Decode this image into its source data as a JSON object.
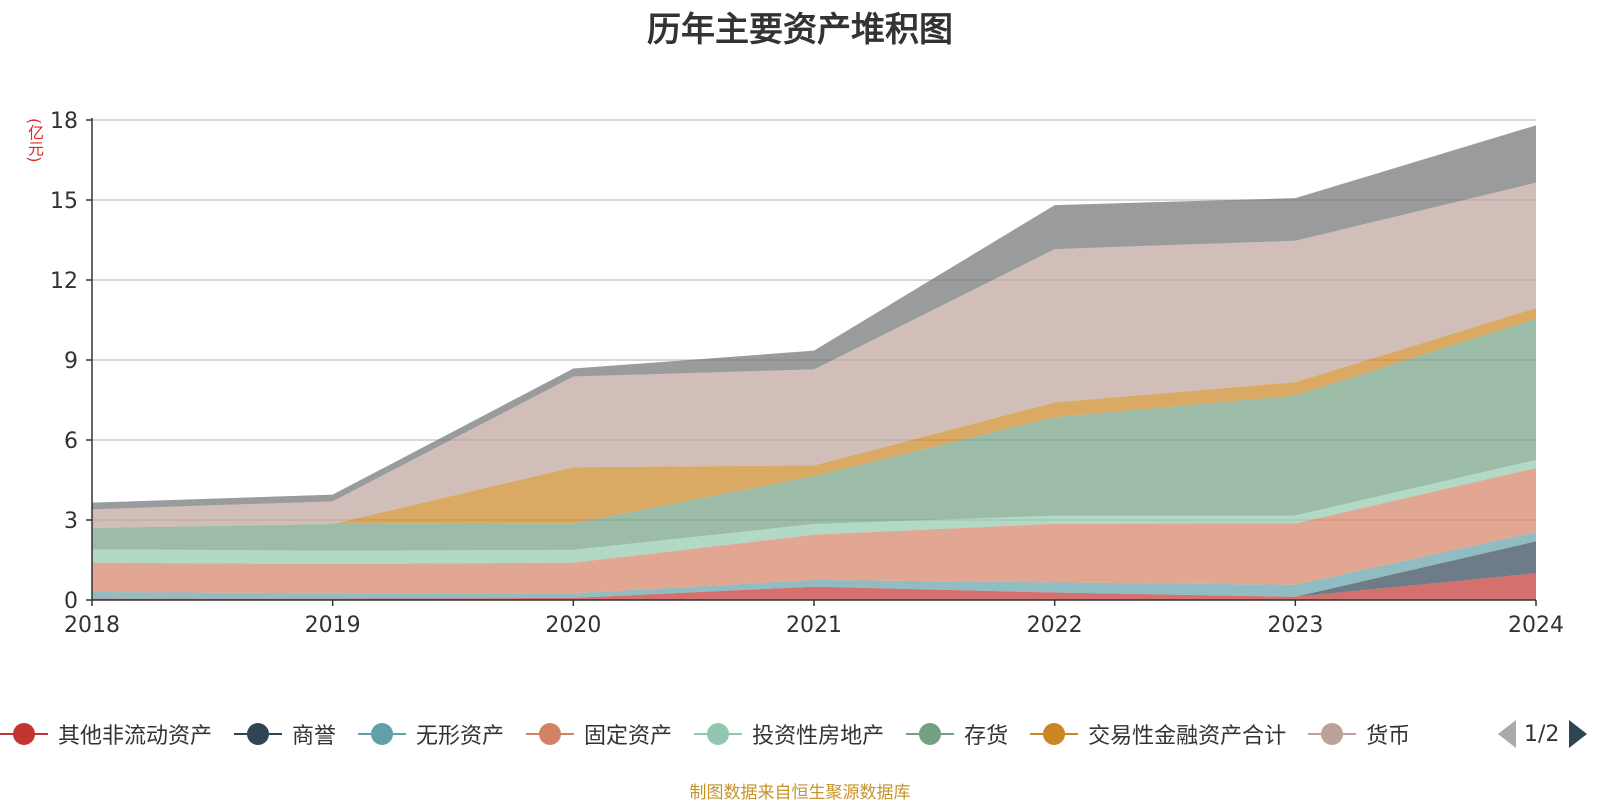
{
  "chart_data": {
    "type": "area",
    "stacked": true,
    "title": "历年主要资产堆积图",
    "ylabel": "(亿元)",
    "xlabel": "",
    "x": [
      "2018",
      "2019",
      "2020",
      "2021",
      "2022",
      "2023",
      "2024"
    ],
    "ylim": [
      0,
      18
    ],
    "yticks": [
      "0",
      "3",
      "6",
      "9",
      "12",
      "15",
      "18"
    ],
    "grid": true,
    "series": [
      {
        "name": "其他非流动资产",
        "color": "#c23531",
        "values": [
          0.05,
          0.05,
          0.08,
          0.5,
          0.28,
          0.12,
          1.0
        ]
      },
      {
        "name": "商誉",
        "color": "#2f4554",
        "values": [
          0.0,
          0.0,
          0.0,
          0.0,
          0.0,
          0.0,
          1.2
        ]
      },
      {
        "name": "无形资产",
        "color": "#61a0a8",
        "values": [
          0.25,
          0.2,
          0.17,
          0.25,
          0.38,
          0.45,
          0.35
        ]
      },
      {
        "name": "固定资产",
        "color": "#d48265",
        "values": [
          1.1,
          1.1,
          1.15,
          1.7,
          2.2,
          2.3,
          2.4
        ]
      },
      {
        "name": "投资性房地产",
        "color": "#91c7ae",
        "values": [
          0.5,
          0.5,
          0.48,
          0.4,
          0.3,
          0.3,
          0.3
        ]
      },
      {
        "name": "存货",
        "color": "#749f83",
        "values": [
          0.8,
          1.0,
          1.0,
          1.8,
          3.7,
          4.5,
          5.3
        ]
      },
      {
        "name": "交易性金融资产合计",
        "color": "#ca8622",
        "values": [
          0.0,
          0.0,
          2.1,
          0.4,
          0.55,
          0.5,
          0.4
        ]
      },
      {
        "name": "货币资金",
        "color": "#bda29a",
        "values": [
          0.7,
          0.85,
          3.4,
          3.6,
          5.75,
          5.3,
          4.7
        ]
      },
      {
        "name": "",
        "color": "#6e7074",
        "values": [
          0.25,
          0.25,
          0.3,
          0.7,
          1.65,
          1.6,
          2.15
        ]
      }
    ],
    "legend_visible_count": 8,
    "legend_placement": "bottom"
  },
  "legend": {
    "partial_label": "货币",
    "pager_text": "1/2"
  },
  "source_note": "制图数据来自恒生聚源数据库"
}
